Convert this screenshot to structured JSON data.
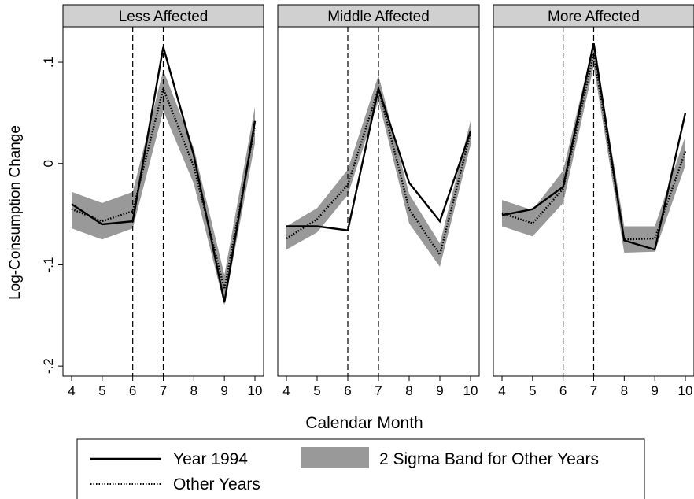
{
  "chart_data": {
    "type": "line",
    "ylabel": "Log-Consumption Change",
    "xlabel": "Calendar Month",
    "x": [
      4,
      5,
      6,
      7,
      8,
      9,
      10
    ],
    "x_tick_labels": [
      "4",
      "5",
      "6",
      "7",
      "8",
      "9",
      "10"
    ],
    "ylim": [
      -0.21,
      0.135
    ],
    "y_ticks": [
      0.1,
      0,
      -0.1,
      -0.2
    ],
    "y_tick_labels": [
      ".1",
      "0",
      "-.1",
      "-.2"
    ],
    "vertical_reference_lines": [
      6,
      7
    ],
    "grid": false,
    "legend": {
      "placement": "bottom",
      "entries": [
        {
          "label": "Year 1994",
          "style": "solid"
        },
        {
          "label": "2 Sigma Band for Other Years",
          "style": "band"
        },
        {
          "label": "Other Years",
          "style": "dotted"
        }
      ]
    },
    "colors": {
      "year_1994": "#000000",
      "other_years": "#000000",
      "band": "#999999",
      "strip": "#d0d0d0"
    },
    "panels": [
      {
        "title": "Less Affected",
        "year_1994": [
          -0.04,
          -0.06,
          -0.057,
          0.115,
          0.008,
          -0.137,
          0.042
        ],
        "other_years": [
          -0.045,
          -0.057,
          -0.047,
          0.074,
          -0.003,
          -0.124,
          0.037
        ],
        "band_upper": [
          -0.028,
          -0.039,
          -0.028,
          0.092,
          0.015,
          -0.11,
          0.056
        ],
        "band_lower": [
          -0.064,
          -0.075,
          -0.064,
          0.052,
          -0.02,
          -0.14,
          0.02
        ]
      },
      {
        "title": "Middle Affected",
        "year_1994": [
          -0.062,
          -0.062,
          -0.066,
          0.074,
          -0.019,
          -0.057,
          0.032
        ],
        "other_years": [
          -0.074,
          -0.055,
          -0.021,
          0.074,
          -0.045,
          -0.09,
          0.03
        ],
        "band_upper": [
          -0.062,
          -0.044,
          -0.006,
          0.087,
          -0.03,
          -0.079,
          0.042
        ],
        "band_lower": [
          -0.085,
          -0.068,
          -0.031,
          0.062,
          -0.059,
          -0.102,
          0.018
        ]
      },
      {
        "title": "More Affected",
        "year_1994": [
          -0.051,
          -0.045,
          -0.023,
          0.119,
          -0.076,
          -0.085,
          0.05
        ],
        "other_years": [
          -0.049,
          -0.059,
          -0.025,
          0.108,
          -0.075,
          -0.074,
          0.012
        ],
        "band_upper": [
          -0.036,
          -0.046,
          -0.007,
          0.12,
          -0.062,
          -0.062,
          0.027
        ],
        "band_lower": [
          -0.062,
          -0.072,
          -0.039,
          0.096,
          -0.088,
          -0.087,
          -0.002
        ]
      }
    ]
  }
}
